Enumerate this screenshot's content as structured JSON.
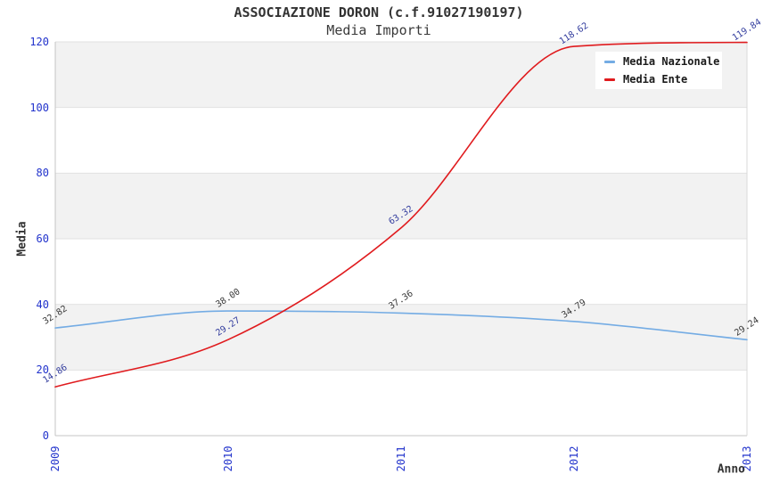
{
  "chart_data": {
    "type": "line",
    "title": "ASSOCIAZIONE DORON (c.f.91027190197)",
    "subtitle": "Media Importi",
    "xlabel": "Anno",
    "ylabel": "Media",
    "x_categories": [
      "2009",
      "2010",
      "2011",
      "2012",
      "2013"
    ],
    "y_ticks": [
      0,
      20,
      40,
      60,
      80,
      100,
      120
    ],
    "ylim": [
      0,
      120
    ],
    "grid": "horizontal-alternating-bands",
    "legend_position": "top-right",
    "series": [
      {
        "name": "Media Nazionale",
        "color": "#74ace4",
        "values": [
          32.82,
          38.0,
          37.36,
          34.79,
          29.24
        ],
        "labels": [
          "32.82",
          "38.00",
          "37.36",
          "34.79",
          "29.24"
        ],
        "label_color": "#3a3a3a"
      },
      {
        "name": "Media Ente",
        "color": "#e01b1e",
        "values": [
          14.86,
          29.27,
          63.32,
          118.62,
          119.84
        ],
        "labels": [
          "14.86",
          "29.27",
          "63.32",
          "118.62",
          "119.84"
        ],
        "label_color": "#333d9e"
      }
    ],
    "colors": {
      "tick_label": "#2233cc",
      "band": "#f2f2f2",
      "gridline": "#e2e2e2",
      "spine": "#c4c4c4",
      "right_spine": "#d9d9d9",
      "title": "#333333",
      "axis_title": "#333333",
      "legend_text": "#1a1a1a",
      "background": "#ffffff"
    }
  }
}
